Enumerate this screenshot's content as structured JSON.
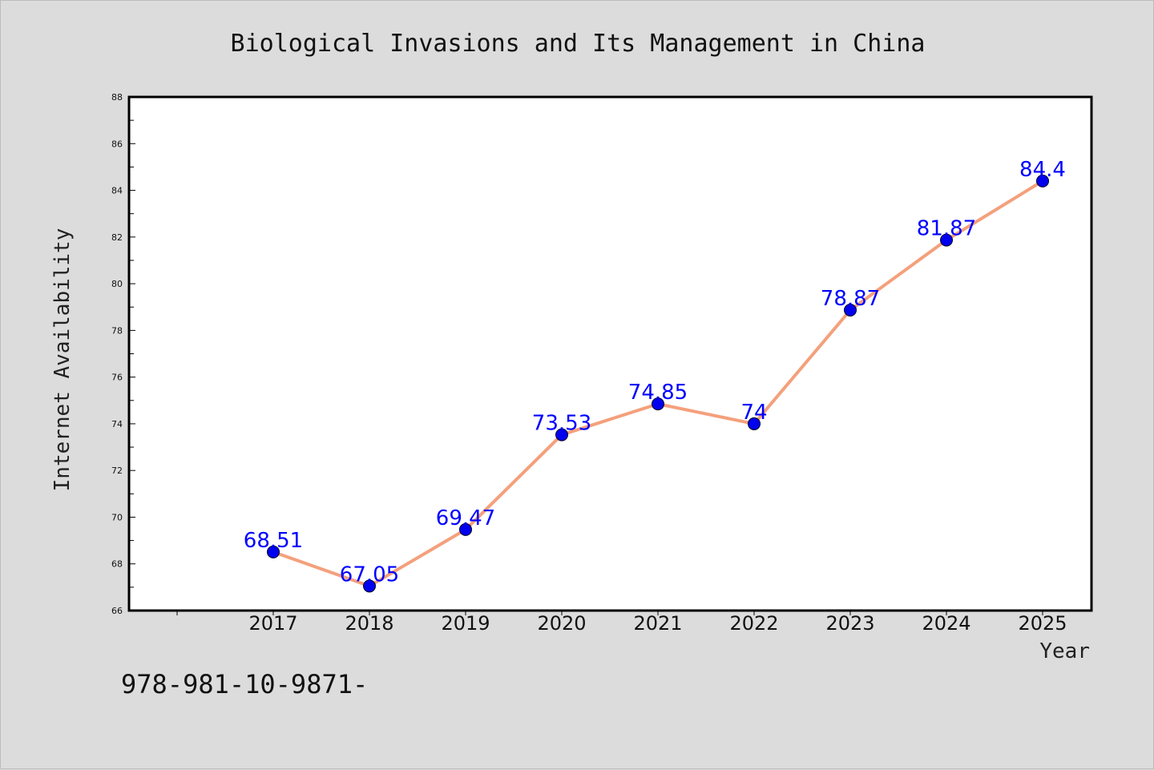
{
  "chart_data": {
    "type": "line",
    "title": "Biological Invasions and Its Management in China",
    "xlabel": "Year",
    "ylabel": "Internet Availability",
    "categories": [
      "2017",
      "2018",
      "2019",
      "2020",
      "2021",
      "2022",
      "2023",
      "2024",
      "2025"
    ],
    "values": [
      68.51,
      67.05,
      69.47,
      73.53,
      74.85,
      74,
      78.87,
      81.87,
      84.4
    ],
    "data_labels": [
      "68.51",
      "67.05",
      "69.47",
      "73.53",
      "74.85",
      "74",
      "78.87",
      "81.87",
      "84.4"
    ],
    "ylim": [
      66,
      88
    ],
    "yticks": [
      "66",
      "68",
      "70",
      "72",
      "74",
      "76",
      "78",
      "80",
      "82",
      "84",
      "86",
      "88"
    ],
    "grid": false,
    "line_color": "#f4a07c",
    "marker_color": "#0000ee",
    "label_color": "#0000ff"
  },
  "footer": {
    "text": "978-981-10-9871-"
  }
}
